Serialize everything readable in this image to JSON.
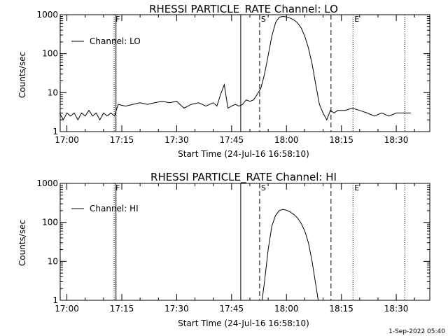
{
  "footer_timestamp": "1-Sep-2022 05:40",
  "chart_data": [
    {
      "type": "line",
      "title": "RHESSI PARTICLE_RATE Channel: LO",
      "xlabel": "Start Time (24-Jul-16 16:58:10)",
      "ylabel": "Counts/sec",
      "y_scale": "log",
      "xlim": [
        "16:58:10",
        "18:39:10"
      ],
      "ylim": [
        1,
        1000
      ],
      "x_ticks": [
        "17:00",
        "17:15",
        "17:30",
        "17:45",
        "18:00",
        "18:15",
        "18:30"
      ],
      "y_ticks": [
        "1",
        "10",
        "100",
        "1000"
      ],
      "legend_position": "top-left",
      "series": [
        {
          "name": "Channel: LO",
          "x": [
            "16:58",
            "16:59",
            "17:00",
            "17:01",
            "17:02",
            "17:03",
            "17:04",
            "17:05",
            "17:06",
            "17:07",
            "17:08",
            "17:09",
            "17:10",
            "17:11",
            "17:12",
            "17:13",
            "17:14",
            "17:16",
            "17:18",
            "17:20",
            "17:22",
            "17:24",
            "17:26",
            "17:28",
            "17:30",
            "17:32",
            "17:34",
            "17:36",
            "17:38",
            "17:39",
            "17:40",
            "17:41",
            "17:42",
            "17:43",
            "17:44",
            "17:45",
            "17:46",
            "17:47",
            "17:48",
            "17:49",
            "17:50",
            "17:51",
            "17:52",
            "17:53",
            "17:54",
            "17:55",
            "17:56",
            "17:57",
            "17:58",
            "17:59",
            "18:00",
            "18:01",
            "18:02",
            "18:03",
            "18:04",
            "18:05",
            "18:06",
            "18:07",
            "18:08",
            "18:09",
            "18:10",
            "18:11",
            "18:12",
            "18:13",
            "18:14",
            "18:16",
            "18:18",
            "18:20",
            "18:22",
            "18:24",
            "18:26",
            "18:28",
            "18:30",
            "18:32",
            "18:34"
          ],
          "values": [
            3.0,
            2.0,
            3.0,
            2.5,
            3.0,
            2.0,
            3.0,
            2.5,
            3.5,
            2.5,
            3.0,
            2.0,
            3.0,
            2.5,
            3.0,
            2.5,
            5.0,
            4.5,
            5.0,
            5.5,
            5.0,
            5.5,
            6.0,
            5.5,
            6.0,
            4.0,
            5.0,
            5.5,
            4.5,
            5.0,
            5.5,
            4.5,
            9.0,
            16.0,
            4.0,
            4.5,
            5.0,
            4.5,
            5.0,
            6.5,
            6.0,
            6.5,
            9.0,
            13.0,
            30.0,
            90.0,
            280.0,
            620.0,
            860.0,
            900.0,
            880.0,
            820.0,
            740.0,
            620.0,
            460.0,
            280.0,
            140.0,
            55.0,
            16.0,
            5.0,
            3.0,
            2.0,
            3.5,
            3.0,
            3.5,
            3.5,
            4.0,
            3.5,
            3.0,
            2.5,
            3.0,
            2.5,
            3.0,
            3.0,
            3.0
          ]
        }
      ],
      "markers": [
        {
          "label": "F",
          "time": "17:12:55",
          "style": "dotted"
        },
        {
          "label": "",
          "time": "17:13:25",
          "style": "solid"
        },
        {
          "label": "",
          "time": "17:47:30",
          "style": "solid"
        },
        {
          "label": "S",
          "time": "17:52:40",
          "style": "dashed"
        },
        {
          "label": "",
          "time": "18:12:10",
          "style": "dashed"
        },
        {
          "label": "E",
          "time": "18:18:10",
          "style": "dotted"
        },
        {
          "label": "",
          "time": "18:32:20",
          "style": "dotted"
        }
      ]
    },
    {
      "type": "line",
      "title": "RHESSI PARTICLE_RATE Channel: HI",
      "xlabel": "Start Time (24-Jul-16 16:58:10)",
      "ylabel": "Counts/sec",
      "y_scale": "log",
      "xlim": [
        "16:58:10",
        "18:39:10"
      ],
      "ylim": [
        1,
        1000
      ],
      "x_ticks": [
        "17:00",
        "17:15",
        "17:30",
        "17:45",
        "18:00",
        "18:15",
        "18:30"
      ],
      "y_ticks": [
        "1",
        "10",
        "100",
        "1000"
      ],
      "legend_position": "top-left",
      "series": [
        {
          "name": "Channel: HI",
          "x": [
            "17:53:20",
            "17:54",
            "17:55",
            "17:56",
            "17:57",
            "17:58",
            "17:59",
            "18:00",
            "18:01",
            "18:02",
            "18:03",
            "18:04",
            "18:05",
            "18:06",
            "18:07",
            "18:08",
            "18:08:40"
          ],
          "values": [
            1.0,
            3.0,
            20.0,
            80.0,
            150.0,
            200.0,
            215.0,
            205.0,
            185.0,
            160.0,
            130.0,
            95.0,
            60.0,
            30.0,
            10.0,
            2.5,
            1.0
          ]
        }
      ],
      "markers": [
        {
          "label": "F",
          "time": "17:12:55",
          "style": "dotted"
        },
        {
          "label": "",
          "time": "17:13:25",
          "style": "solid"
        },
        {
          "label": "",
          "time": "17:47:30",
          "style": "solid"
        },
        {
          "label": "S",
          "time": "17:52:40",
          "style": "dashed"
        },
        {
          "label": "",
          "time": "18:12:10",
          "style": "dashed"
        },
        {
          "label": "E",
          "time": "18:18:10",
          "style": "dotted"
        },
        {
          "label": "",
          "time": "18:32:20",
          "style": "dotted"
        }
      ]
    }
  ]
}
